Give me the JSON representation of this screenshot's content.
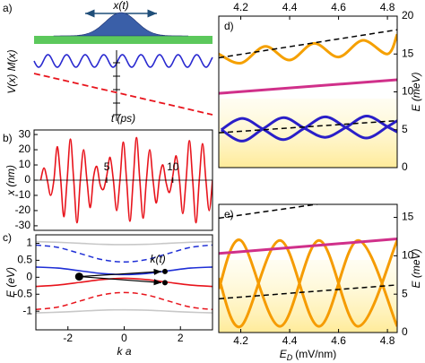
{
  "schematic": {
    "panel_label": "a)",
    "arrow_label": "x(t)",
    "y_label": "V(x) M(x)"
  },
  "chart_data": [
    {
      "type": "line",
      "panel_label": "b)",
      "x_label": "t (ps)",
      "y_label": "x (nm)",
      "x": [
        0,
        0.25,
        0.5,
        0.75,
        1,
        1.25,
        1.5,
        1.75,
        2,
        2.25,
        2.5,
        2.75,
        3,
        3.25,
        3.5,
        3.75,
        4,
        4.25,
        4.5,
        4.75,
        5,
        5.25,
        5.5,
        5.75,
        6,
        6.25,
        6.5,
        6.75,
        7,
        7.25,
        7.5,
        7.75,
        8,
        8.25,
        8.5,
        8.75,
        9,
        9.25,
        9.5,
        9.75,
        10,
        10.25,
        10.5,
        10.75,
        11,
        11.25,
        11.5,
        11.75,
        12,
        12.25,
        12.5,
        12.75,
        13
      ],
      "series": [
        {
          "color": "#e8141c",
          "values": [
            0,
            8,
            0,
            -10,
            0,
            22,
            2,
            -24,
            0,
            27,
            0,
            -28,
            0,
            20,
            0,
            -18,
            2,
            9,
            -3,
            -6,
            3,
            15,
            0,
            -20,
            0,
            25,
            0,
            -27,
            0,
            28,
            0,
            -25,
            0,
            20,
            0,
            -15,
            2,
            10,
            -2,
            -8,
            3,
            16,
            0,
            -22,
            0,
            26,
            0,
            -28,
            0,
            24,
            0,
            -20,
            0
          ]
        }
      ],
      "xlim": [
        -0.5,
        13
      ],
      "ylim": [
        -33,
        33
      ],
      "xticks": [
        5,
        10
      ],
      "yticks": [
        30,
        20,
        10,
        0,
        -10,
        -20,
        -30
      ]
    },
    {
      "type": "line",
      "panel_label": "c)",
      "x_label": "k a",
      "y_label": "E (eV)",
      "annotation": "k(t)",
      "x": [
        -3.14,
        -2.36,
        -1.57,
        -0.79,
        0,
        0.79,
        1.57,
        2.36,
        3.14
      ],
      "series": [
        {
          "color": "#1f2fd6",
          "dash": false,
          "values": [
            0.3,
            0.27,
            0.19,
            0.11,
            0.08,
            0.11,
            0.19,
            0.27,
            0.3
          ]
        },
        {
          "color": "#e8141c",
          "dash": false,
          "values": [
            -0.27,
            -0.23,
            -0.15,
            -0.07,
            -0.03,
            -0.07,
            -0.15,
            -0.23,
            -0.27
          ]
        },
        {
          "color": "#1f2fd6",
          "dash": true,
          "values": [
            0.95,
            0.88,
            0.7,
            0.52,
            0.45,
            0.52,
            0.7,
            0.88,
            0.95
          ]
        },
        {
          "color": "#e8141c",
          "dash": true,
          "values": [
            -0.95,
            -0.88,
            -0.7,
            -0.52,
            -0.45,
            -0.52,
            -0.7,
            -0.88,
            -0.95
          ]
        },
        {
          "color": "#c8c8c8",
          "dash": false,
          "values": [
            1.05,
            1.03,
            1,
            0.97,
            0.96,
            0.97,
            1,
            1.03,
            1.05
          ]
        },
        {
          "color": "#c8c8c8",
          "dash": false,
          "values": [
            -1.05,
            -1.03,
            -1,
            -0.97,
            -0.96,
            -0.97,
            -1,
            -1.03,
            -1.05
          ]
        }
      ],
      "points": {
        "x": [
          -1.6,
          1.45,
          1.45
        ],
        "values": [
          0.02,
          0.17,
          -0.16
        ],
        "color": "#000000"
      },
      "xlim": [
        -3.14,
        3.14
      ],
      "ylim": [
        -1.55,
        1.25
      ],
      "xticks": [
        -2,
        0,
        2
      ],
      "yticks": [
        1,
        0.5,
        0,
        -0.5,
        -1
      ]
    },
    {
      "type": "line",
      "panel_label": "d)",
      "y_label": "E (meV)",
      "series": [
        {
          "color": "#f5a000",
          "dash": false,
          "x": [
            4.11,
            4.2,
            4.3,
            4.4,
            4.5,
            4.6,
            4.7,
            4.8,
            4.84
          ],
          "values": [
            15,
            13.8,
            16,
            14.2,
            16.4,
            14.6,
            16.8,
            15,
            17.6
          ]
        },
        {
          "color": "#d0308a",
          "dash": false,
          "x": [
            4.11,
            4.84
          ],
          "values": [
            9.8,
            11.6
          ]
        },
        {
          "color": "#2a1fc8",
          "dash": false,
          "x": [
            4.12,
            4.205,
            4.29,
            4.375,
            4.46,
            4.545,
            4.63,
            4.715,
            4.8,
            4.84
          ],
          "values": [
            5,
            6.5,
            5.1,
            3.7,
            5.2,
            6.7,
            5.3,
            3.9,
            5.4,
            6.2
          ]
        },
        {
          "color": "#2a1fc8",
          "dash": false,
          "x": [
            4.12,
            4.205,
            4.29,
            4.375,
            4.46,
            4.545,
            4.63,
            4.715,
            4.8,
            4.84
          ],
          "values": [
            5,
            3.5,
            5.1,
            6.6,
            5.2,
            4,
            5.3,
            6.8,
            5.4,
            4.7
          ]
        },
        {
          "color": "#000000",
          "dash": true,
          "x": [
            4.11,
            4.84
          ],
          "values": [
            14.5,
            18.2
          ]
        },
        {
          "color": "#000000",
          "dash": true,
          "x": [
            4.11,
            4.84
          ],
          "values": [
            4.6,
            6.2
          ]
        }
      ],
      "xlim": [
        4.11,
        4.84
      ],
      "ylim": [
        0,
        20
      ],
      "xticks": [
        4.2,
        4.4,
        4.6,
        4.8
      ],
      "yticks": [
        0,
        5,
        10,
        15,
        20
      ]
    },
    {
      "type": "line",
      "panel_label": "e)",
      "y_label": "E (meV)",
      "x_label": {
        "symbol": "E",
        "subscript": "D",
        "unit": "(mV/nm)"
      },
      "series": [
        {
          "color": "#f59b00",
          "dash": false,
          "x": [
            4.11,
            4.2,
            4.36,
            4.52,
            4.68,
            4.84
          ],
          "values": [
            7.1,
            0.8,
            12,
            0.8,
            12,
            0.8
          ]
        },
        {
          "color": "#f59b00",
          "dash": false,
          "x": [
            4.11,
            4.2,
            4.36,
            4.52,
            4.68,
            4.84
          ],
          "values": [
            5.7,
            12,
            0.8,
            12,
            0.8,
            12
          ]
        },
        {
          "color": "#d0308a",
          "dash": false,
          "x": [
            4.11,
            4.84
          ],
          "values": [
            10.3,
            12.2
          ]
        },
        {
          "color": "#000000",
          "dash": true,
          "x": [
            4.11,
            4.84
          ],
          "values": [
            14.9,
            18.2
          ]
        },
        {
          "color": "#000000",
          "dash": true,
          "x": [
            4.11,
            4.84
          ],
          "values": [
            4.4,
            6.2
          ]
        }
      ],
      "xlim": [
        4.11,
        4.84
      ],
      "ylim": [
        0,
        16.7
      ],
      "xticks": [
        4.2,
        4.4,
        4.6,
        4.8
      ],
      "yticks": [
        0,
        5,
        10,
        15
      ]
    }
  ]
}
